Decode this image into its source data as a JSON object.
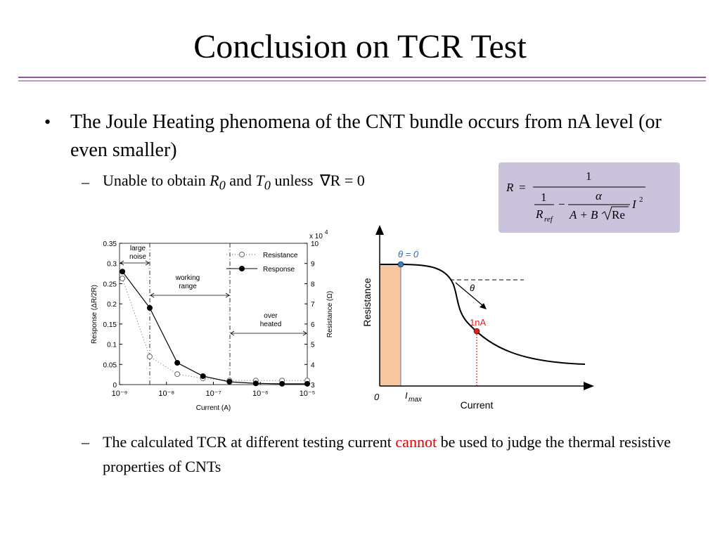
{
  "title": "Conclusion on TCR Test",
  "bullet_1": "The Joule Heating phenomena of the CNT bundle occurs from nA level (or even smaller)",
  "sub_bullet_1": {
    "parts": [
      "Unable to obtain ",
      "R",
      "0",
      " and ",
      "T",
      "0",
      " unless ",
      "∇R = 0"
    ]
  },
  "sub_bullet_2": {
    "before": "The calculated TCR at different testing current ",
    "emphasis": "cannot",
    "after": " be used to judge the thermal resistive properties of CNTs"
  },
  "formula": {
    "lhs": "R",
    "eq": "=",
    "numerator": "1",
    "inner_numerator": "1",
    "r_ref": "R",
    "r_ref_sub": "ref",
    "minus": "−",
    "alpha": "α",
    "denominator": "A + B",
    "root": "Re",
    "current": "I",
    "exponent": "2"
  },
  "diagram": {
    "y_label": "Resistance",
    "x_label": "Current",
    "origin": "0",
    "imax": "I",
    "imax_sub": "max",
    "theta_zero": "θ = 0",
    "theta": "θ",
    "point": "1nA"
  },
  "chart_data": {
    "type": "line",
    "x_log": true,
    "x": [
      1.15e-09,
      4.4e-09,
      1.7e-08,
      6e-08,
      2.2e-07,
      8e-07,
      2.9e-06,
      1e-05
    ],
    "xlim": [
      1e-09,
      1e-05
    ],
    "xticks": [
      {
        "value": 1e-09,
        "label": "10⁻⁹"
      },
      {
        "value": 1e-08,
        "label": "10⁻⁸"
      },
      {
        "value": 1e-07,
        "label": "10⁻⁷"
      },
      {
        "value": 1e-06,
        "label": "10⁻⁶"
      },
      {
        "value": 1e-05,
        "label": "10⁻⁵"
      }
    ],
    "ylim": [
      0,
      0.35
    ],
    "yticks": [
      0,
      0.05,
      0.1,
      0.15,
      0.2,
      0.25,
      0.3,
      0.35
    ],
    "y2lim": [
      3,
      10
    ],
    "y2ticks": [
      3,
      4,
      5,
      6,
      7,
      8,
      9,
      10
    ],
    "y2_multiplier": "x 10",
    "y2_multiplier_exp": "4",
    "x_label": "Current (A)",
    "y_label": "Response (ΔR/2R)",
    "y2_label": "Resistance (Ω)",
    "legend": "upper right",
    "series": [
      {
        "name": "Resistance",
        "color": "#666666",
        "axis": "y2",
        "values": [
          8.26,
          4.39,
          3.52,
          3.31,
          3.2,
          3.2,
          3.2,
          3.2
        ]
      },
      {
        "name": "Response",
        "color": "#000000",
        "values": [
          0.28,
          0.19,
          0.054,
          0.021,
          0.007,
          0.003,
          0.002,
          0.002
        ]
      }
    ],
    "annotations": [
      [
        "large",
        "noise"
      ],
      [
        "working",
        "range"
      ],
      [
        "over",
        "heated"
      ]
    ]
  }
}
